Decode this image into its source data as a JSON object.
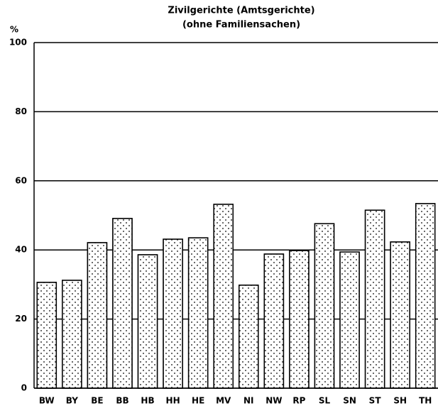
{
  "chart_data": {
    "type": "bar",
    "title": [
      "Zivilgerichte (Amtsgerichte)",
      "(ohne Familiensachen)"
    ],
    "y_label": "%",
    "categories": [
      "BW",
      "BY",
      "BE",
      "BB",
      "HB",
      "HH",
      "HE",
      "MV",
      "NI",
      "NW",
      "RP",
      "SL",
      "SN",
      "ST",
      "SH",
      "TH"
    ],
    "values": [
      30.6,
      31.2,
      42.1,
      49.1,
      38.6,
      43.1,
      43.5,
      53.2,
      29.8,
      38.8,
      39.8,
      47.6,
      39.4,
      51.5,
      42.3,
      53.4
    ],
    "color": "#ffffff",
    "ylim": [
      0,
      100
    ],
    "yticks": [
      0,
      20,
      40,
      60,
      80,
      100
    ],
    "grid": true
  }
}
